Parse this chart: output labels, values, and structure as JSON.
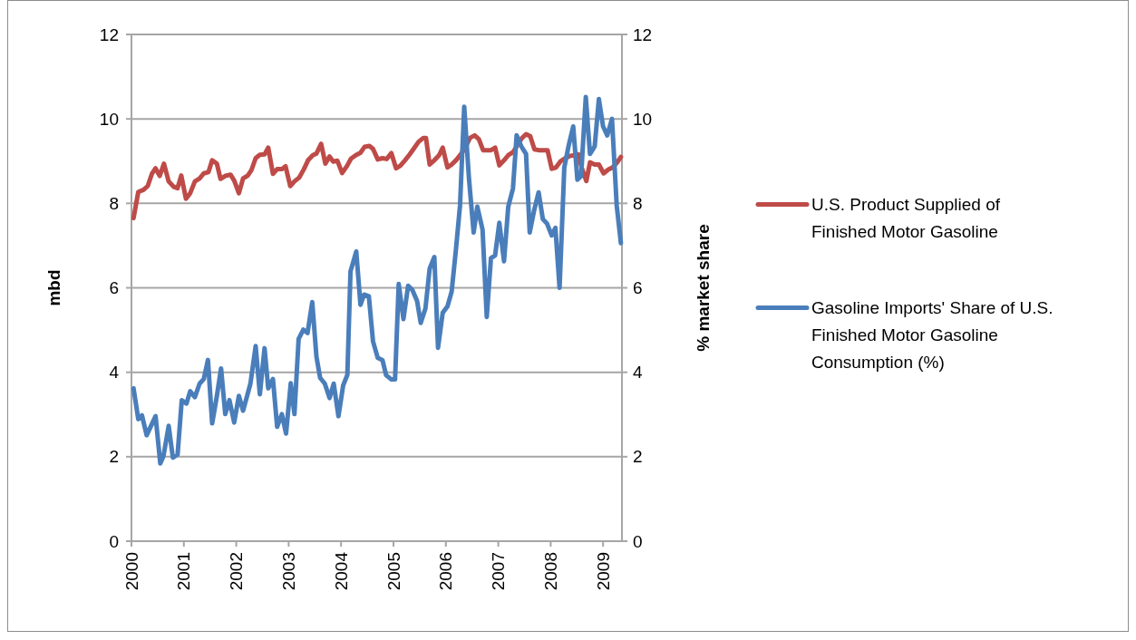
{
  "chart_data": {
    "type": "line",
    "ylabel": "mbd",
    "y2label": "% market share",
    "xlim": [
      2000,
      2009.36
    ],
    "xticks": [
      2000,
      2001,
      2002,
      2003,
      2004,
      2005,
      2006,
      2007,
      2008,
      2009
    ],
    "ylim": [
      0,
      12
    ],
    "yticks": [
      0,
      2,
      4,
      6,
      8,
      10,
      12
    ],
    "y2lim": [
      0,
      12
    ],
    "y2ticks": [
      0,
      2,
      4,
      6,
      8,
      10,
      12
    ],
    "grid": "y",
    "legend": "right",
    "marker": "none",
    "line_style": "solid",
    "series": [
      {
        "name": "U.S. Product Supplied of Finished Motor Gasoline",
        "color": "#be4b48",
        "x": [
          2000.04,
          2000.13,
          2000.23,
          2000.31,
          2000.39,
          2000.46,
          2000.54,
          2000.62,
          2000.71,
          2000.81,
          2000.88,
          2000.95,
          2001.04,
          2001.12,
          2001.21,
          2001.3,
          2001.38,
          2001.47,
          2001.54,
          2001.63,
          2001.7,
          2001.79,
          2001.89,
          2001.96,
          2002.05,
          2002.13,
          2002.22,
          2002.29,
          2002.37,
          2002.45,
          2002.54,
          2002.61,
          2002.7,
          2002.78,
          2002.87,
          2002.94,
          2003.03,
          2003.11,
          2003.2,
          2003.29,
          2003.37,
          2003.46,
          2003.53,
          2003.62,
          2003.7,
          2003.78,
          2003.85,
          2003.93,
          2004.02,
          2004.11,
          2004.19,
          2004.28,
          2004.37,
          2004.45,
          2004.54,
          2004.61,
          2004.7,
          2004.79,
          2004.87,
          2004.96,
          2005.05,
          2005.13,
          2005.22,
          2005.31,
          2005.39,
          2005.48,
          2005.57,
          2005.62,
          2005.69,
          2005.78,
          2005.87,
          2005.94,
          2006.03,
          2006.11,
          2006.2,
          2006.29,
          2006.37,
          2006.46,
          2006.55,
          2006.63,
          2006.71,
          2006.79,
          2006.86,
          2006.94,
          2007.02,
          2007.11,
          2007.19,
          2007.28,
          2007.35,
          2007.44,
          2007.53,
          2007.61,
          2007.69,
          2007.77,
          2007.86,
          2007.94,
          2008.02,
          2008.1,
          2008.19,
          2008.28,
          2008.36,
          2008.45,
          2008.53,
          2008.59,
          2008.68,
          2008.75,
          2008.84,
          2008.92,
          2009.01,
          2009.1,
          2009.18,
          2009.27,
          2009.34
        ],
        "values": [
          7.65,
          8.27,
          8.32,
          8.41,
          8.7,
          8.83,
          8.65,
          8.94,
          8.52,
          8.39,
          8.36,
          8.66,
          8.11,
          8.24,
          8.52,
          8.59,
          8.71,
          8.74,
          9.02,
          8.94,
          8.58,
          8.65,
          8.68,
          8.54,
          8.24,
          8.59,
          8.66,
          8.79,
          9.07,
          9.15,
          9.16,
          9.32,
          8.7,
          8.81,
          8.81,
          8.88,
          8.41,
          8.52,
          8.61,
          8.81,
          9.02,
          9.14,
          9.18,
          9.41,
          8.94,
          9.11,
          8.99,
          9.01,
          8.72,
          8.88,
          9.06,
          9.14,
          9.2,
          9.34,
          9.36,
          9.29,
          9.04,
          9.07,
          9.05,
          9.19,
          8.83,
          8.89,
          9.02,
          9.16,
          9.3,
          9.46,
          9.55,
          9.55,
          8.92,
          9.02,
          9.14,
          9.32,
          8.85,
          8.92,
          9.03,
          9.17,
          9.32,
          9.55,
          9.61,
          9.52,
          9.26,
          9.26,
          9.26,
          9.32,
          8.9,
          9.02,
          9.14,
          9.21,
          9.35,
          9.53,
          9.64,
          9.59,
          9.28,
          9.26,
          9.26,
          9.26,
          8.82,
          8.85,
          9.0,
          9.07,
          9.12,
          9.14,
          9.16,
          8.85,
          8.53,
          8.97,
          8.92,
          8.92,
          8.71,
          8.8,
          8.85,
          8.97,
          9.1
        ]
      },
      {
        "name": "Gasoline Imports' Share of U.S. Finished Motor Gasoline Consumption (%)",
        "color": "#4a7ebb",
        "axis": "y2",
        "x": [
          2000.04,
          2000.13,
          2000.2,
          2000.29,
          2000.46,
          2000.55,
          2000.61,
          2000.71,
          2000.79,
          2000.88,
          2000.96,
          2001.05,
          2001.12,
          2001.21,
          2001.3,
          2001.38,
          2001.46,
          2001.54,
          2001.63,
          2001.71,
          2001.79,
          2001.87,
          2001.96,
          2002.05,
          2002.13,
          2002.27,
          2002.37,
          2002.45,
          2002.54,
          2002.61,
          2002.7,
          2002.78,
          2002.87,
          2002.95,
          2003.04,
          2003.11,
          2003.19,
          2003.28,
          2003.36,
          2003.45,
          2003.53,
          2003.6,
          2003.69,
          2003.78,
          2003.86,
          2003.95,
          2004.04,
          2004.12,
          2004.18,
          2004.29,
          2004.37,
          2004.44,
          2004.53,
          2004.61,
          2004.7,
          2004.79,
          2004.86,
          2004.96,
          2005.03,
          2005.1,
          2005.19,
          2005.28,
          2005.36,
          2005.45,
          2005.52,
          2005.61,
          2005.69,
          2005.78,
          2005.85,
          2005.94,
          2006.03,
          2006.11,
          2006.19,
          2006.27,
          2006.35,
          2006.44,
          2006.53,
          2006.6,
          2006.7,
          2006.78,
          2006.86,
          2006.94,
          2007.02,
          2007.11,
          2007.19,
          2007.28,
          2007.35,
          2007.44,
          2007.53,
          2007.6,
          2007.68,
          2007.77,
          2007.85,
          2007.93,
          2008.02,
          2008.09,
          2008.17,
          2008.26,
          2008.34,
          2008.43,
          2008.51,
          2008.58,
          2008.67,
          2008.75,
          2008.84,
          2008.92,
          2009.0,
          2009.08,
          2009.17,
          2009.26,
          2009.34
        ],
        "values": [
          3.62,
          2.89,
          2.98,
          2.51,
          2.96,
          1.84,
          2.01,
          2.73,
          1.98,
          2.05,
          3.34,
          3.26,
          3.55,
          3.41,
          3.73,
          3.84,
          4.29,
          2.79,
          3.44,
          4.09,
          3.01,
          3.34,
          2.81,
          3.44,
          3.09,
          3.73,
          4.62,
          3.48,
          4.57,
          3.62,
          3.84,
          2.71,
          3.01,
          2.55,
          3.74,
          3.01,
          4.79,
          5.01,
          4.93,
          5.66,
          4.37,
          3.87,
          3.73,
          3.39,
          3.73,
          2.96,
          3.69,
          3.94,
          6.39,
          6.86,
          5.6,
          5.84,
          5.8,
          4.73,
          4.34,
          4.29,
          3.93,
          3.83,
          3.83,
          6.09,
          5.26,
          6.05,
          5.95,
          5.69,
          5.17,
          5.51,
          6.45,
          6.73,
          4.58,
          5.41,
          5.56,
          5.91,
          6.88,
          7.95,
          10.29,
          8.6,
          7.31,
          7.92,
          7.38,
          5.31,
          6.7,
          6.77,
          7.54,
          6.63,
          7.92,
          8.35,
          9.61,
          9.35,
          9.17,
          7.31,
          7.81,
          8.26,
          7.63,
          7.52,
          7.24,
          7.42,
          6.0,
          8.85,
          9.35,
          9.82,
          8.56,
          8.64,
          10.52,
          9.17,
          9.35,
          10.47,
          9.82,
          9.61,
          10.0,
          7.95,
          7.06
        ]
      }
    ]
  }
}
